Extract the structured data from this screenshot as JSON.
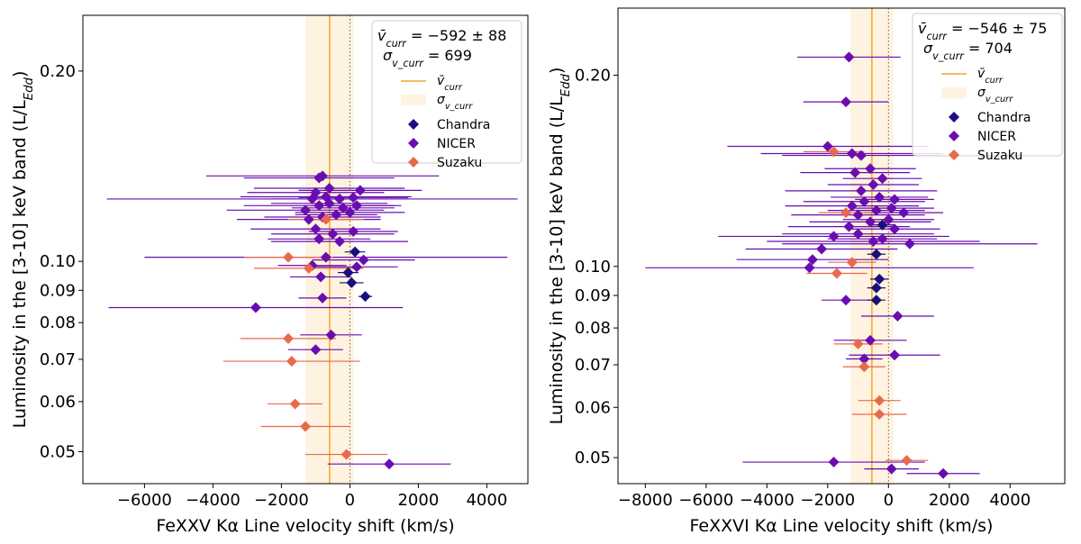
{
  "chart_data": [
    {
      "type": "scatter",
      "panel": "left",
      "xlabel": "FeXXV Kα Line velocity shift (km/s)",
      "ylabel": "Luminosity in the [3-10] keV band (L/L_Edd)",
      "xlim": [
        -7800,
        5200
      ],
      "ylim": [
        0.0445,
        0.245
      ],
      "yscale": "log",
      "xticks": [
        -6000,
        -4000,
        -2000,
        0,
        2000,
        4000
      ],
      "xtick_labels": [
        "−6000",
        "−4000",
        "−2000",
        "0",
        "2000",
        "4000"
      ],
      "yticks": [
        0.05,
        0.06,
        0.07,
        0.08,
        0.09,
        0.1,
        0.2
      ],
      "ytick_labels": [
        "0.05",
        "0.06",
        "0.07",
        "0.08",
        "0.09",
        "0.10",
        "0.20"
      ],
      "mean_velocity": -592,
      "sigma_velocity": 699,
      "stat_text_1": "v̄_curr = −592 ± 88",
      "stat_text_2": "σ_v_curr = 699",
      "legend": {
        "mean_label": "v̄_curr",
        "sigma_label": "σ_v_curr",
        "entries": [
          {
            "name": "Chandra",
            "color": "#1a0f7a"
          },
          {
            "name": "NICER",
            "color": "#6a0db0"
          },
          {
            "name": "Suzaku",
            "color": "#e86a4d"
          }
        ]
      },
      "series": [
        {
          "name": "Chandra",
          "color": "#1a0f7a",
          "points": [
            {
              "x": 150,
              "y": 0.1035,
              "xerr": 300
            },
            {
              "x": 50,
              "y": 0.0925,
              "xerr": 350
            },
            {
              "x": -50,
              "y": 0.096,
              "xerr": 300
            },
            {
              "x": 450,
              "y": 0.088,
              "xerr": 200
            }
          ]
        },
        {
          "name": "NICER",
          "color": "#6a0db0",
          "points": [
            {
              "x": 1150,
              "y": 0.0478,
              "xerr": 1800
            },
            {
              "x": -2750,
              "y": 0.0845,
              "xerr": 4300
            },
            {
              "x": -550,
              "y": 0.0765,
              "xerr": 900
            },
            {
              "x": -1000,
              "y": 0.0725,
              "xerr": 800
            },
            {
              "x": -800,
              "y": 0.0875,
              "xerr": 700
            },
            {
              "x": -850,
              "y": 0.0945,
              "xerr": 900
            },
            {
              "x": -1100,
              "y": 0.0985,
              "xerr": 1000
            },
            {
              "x": -700,
              "y": 0.1015,
              "xerr": 5300
            },
            {
              "x": 400,
              "y": 0.1005,
              "xerr": 1500
            },
            {
              "x": 200,
              "y": 0.098,
              "xerr": 1200
            },
            {
              "x": -300,
              "y": 0.1075,
              "xerr": 2000
            },
            {
              "x": -900,
              "y": 0.1085,
              "xerr": 1500
            },
            {
              "x": -500,
              "y": 0.1105,
              "xerr": 1800
            },
            {
              "x": 100,
              "y": 0.1115,
              "xerr": 1300
            },
            {
              "x": -1000,
              "y": 0.1125,
              "xerr": 1900
            },
            {
              "x": -1200,
              "y": 0.1165,
              "xerr": 2100
            },
            {
              "x": -800,
              "y": 0.1175,
              "xerr": 1700
            },
            {
              "x": -400,
              "y": 0.1185,
              "xerr": 1200
            },
            {
              "x": 0,
              "y": 0.1195,
              "xerr": 1600
            },
            {
              "x": -1300,
              "y": 0.1205,
              "xerr": 2300
            },
            {
              "x": -900,
              "y": 0.1225,
              "xerr": 2200
            },
            {
              "x": -600,
              "y": 0.1235,
              "xerr": 1700
            },
            {
              "x": -200,
              "y": 0.1215,
              "xerr": 1500
            },
            {
              "x": 200,
              "y": 0.1225,
              "xerr": 1300
            },
            {
              "x": -1100,
              "y": 0.1255,
              "xerr": 6000
            },
            {
              "x": -700,
              "y": 0.1265,
              "xerr": 2500
            },
            {
              "x": -300,
              "y": 0.1255,
              "xerr": 2000
            },
            {
              "x": 100,
              "y": 0.1262,
              "xerr": 1600
            },
            {
              "x": -1000,
              "y": 0.1285,
              "xerr": 2000
            },
            {
              "x": 300,
              "y": 0.1295,
              "xerr": 1800
            },
            {
              "x": -600,
              "y": 0.1305,
              "xerr": 2200
            },
            {
              "x": -900,
              "y": 0.1355,
              "xerr": 2200
            },
            {
              "x": -800,
              "y": 0.1365,
              "xerr": 3400
            }
          ]
        },
        {
          "name": "Suzaku",
          "color": "#e86a4d",
          "points": [
            {
              "x": -100,
              "y": 0.0495,
              "xerr": 1200
            },
            {
              "x": -1300,
              "y": 0.0548,
              "xerr": 1300
            },
            {
              "x": -1600,
              "y": 0.0595,
              "xerr": 800
            },
            {
              "x": -1700,
              "y": 0.0695,
              "xerr": 2000
            },
            {
              "x": -1800,
              "y": 0.0755,
              "xerr": 1400
            },
            {
              "x": -1200,
              "y": 0.0975,
              "xerr": 1600
            },
            {
              "x": -1800,
              "y": 0.1015,
              "xerr": 1300
            },
            {
              "x": -700,
              "y": 0.1165,
              "xerr": 1100
            }
          ]
        }
      ]
    },
    {
      "type": "scatter",
      "panel": "right",
      "xlabel": "FeXXVI Kα Line velocity shift (km/s)",
      "ylabel": "Luminosity in the [3-10] keV band (L/L_Edd)",
      "xlim": [
        -8900,
        5800
      ],
      "ylim": [
        0.0455,
        0.255
      ],
      "yscale": "log",
      "xticks": [
        -8000,
        -6000,
        -4000,
        -2000,
        0,
        2000,
        4000
      ],
      "xtick_labels": [
        "−8000",
        "−6000",
        "−4000",
        "−2000",
        "0",
        "2000",
        "4000"
      ],
      "yticks": [
        0.05,
        0.06,
        0.07,
        0.08,
        0.09,
        0.1,
        0.2
      ],
      "ytick_labels": [
        "0.05",
        "0.06",
        "0.07",
        "0.08",
        "0.09",
        "0.10",
        "0.20"
      ],
      "mean_velocity": -546,
      "sigma_velocity": 704,
      "stat_text_1": "v̄_curr = −546 ± 75",
      "stat_text_2": "σ_v_curr = 704",
      "legend": {
        "mean_label": "v̄_curr",
        "sigma_label": "σ_v_curr",
        "entries": [
          {
            "name": "Chandra",
            "color": "#1a0f7a"
          },
          {
            "name": "NICER",
            "color": "#6a0db0"
          },
          {
            "name": "Suzaku",
            "color": "#e86a4d"
          }
        ]
      },
      "series": [
        {
          "name": "Chandra",
          "color": "#1a0f7a",
          "points": [
            {
              "x": -400,
              "y": 0.0885,
              "xerr": 300
            },
            {
              "x": -400,
              "y": 0.0925,
              "xerr": 300
            },
            {
              "x": -300,
              "y": 0.0955,
              "xerr": 300
            },
            {
              "x": -400,
              "y": 0.1045,
              "xerr": 300
            },
            {
              "x": -200,
              "y": 0.1162,
              "xerr": 400
            }
          ]
        },
        {
          "name": "NICER",
          "color": "#6a0db0",
          "points": [
            {
              "x": -1800,
              "y": 0.0492,
              "xerr": 3000
            },
            {
              "x": 1800,
              "y": 0.0472,
              "xerr": 1200
            },
            {
              "x": 100,
              "y": 0.048,
              "xerr": 900
            },
            {
              "x": 300,
              "y": 0.0835,
              "xerr": 1200
            },
            {
              "x": -800,
              "y": 0.0715,
              "xerr": 600
            },
            {
              "x": 200,
              "y": 0.0725,
              "xerr": 1500
            },
            {
              "x": -600,
              "y": 0.0765,
              "xerr": 1200
            },
            {
              "x": -1400,
              "y": 0.0885,
              "xerr": 800
            },
            {
              "x": -2600,
              "y": 0.0995,
              "xerr": 5400
            },
            {
              "x": -2500,
              "y": 0.1025,
              "xerr": 2500
            },
            {
              "x": -2200,
              "y": 0.1065,
              "xerr": 2500
            },
            {
              "x": -500,
              "y": 0.1095,
              "xerr": 3500
            },
            {
              "x": 700,
              "y": 0.1085,
              "xerr": 4200
            },
            {
              "x": -1800,
              "y": 0.1115,
              "xerr": 3800
            },
            {
              "x": -1000,
              "y": 0.1125,
              "xerr": 2500
            },
            {
              "x": -200,
              "y": 0.1105,
              "xerr": 1800
            },
            {
              "x": 200,
              "y": 0.1145,
              "xerr": 1500
            },
            {
              "x": -1300,
              "y": 0.1155,
              "xerr": 2000
            },
            {
              "x": -600,
              "y": 0.1175,
              "xerr": 2000
            },
            {
              "x": 0,
              "y": 0.1185,
              "xerr": 1500
            },
            {
              "x": -1000,
              "y": 0.1205,
              "xerr": 2200
            },
            {
              "x": -400,
              "y": 0.1225,
              "xerr": 1600
            },
            {
              "x": 100,
              "y": 0.1235,
              "xerr": 1400
            },
            {
              "x": 500,
              "y": 0.1215,
              "xerr": 1300
            },
            {
              "x": -1200,
              "y": 0.1245,
              "xerr": 2200
            },
            {
              "x": -800,
              "y": 0.1265,
              "xerr": 2000
            },
            {
              "x": -300,
              "y": 0.1285,
              "xerr": 1600
            },
            {
              "x": 200,
              "y": 0.1275,
              "xerr": 1300
            },
            {
              "x": -900,
              "y": 0.1315,
              "xerr": 2500
            },
            {
              "x": -500,
              "y": 0.1345,
              "xerr": 1500
            },
            {
              "x": -200,
              "y": 0.1375,
              "xerr": 1300
            },
            {
              "x": -1100,
              "y": 0.1405,
              "xerr": 1800
            },
            {
              "x": -600,
              "y": 0.1425,
              "xerr": 1500
            },
            {
              "x": -900,
              "y": 0.1495,
              "xerr": 2600
            },
            {
              "x": -1200,
              "y": 0.1505,
              "xerr": 3000
            },
            {
              "x": -2000,
              "y": 0.1545,
              "xerr": 3300
            },
            {
              "x": -1400,
              "y": 0.1815,
              "xerr": 1400
            },
            {
              "x": -1300,
              "y": 0.2135,
              "xerr": 1700
            }
          ]
        },
        {
          "name": "Suzaku",
          "color": "#e86a4d",
          "points": [
            {
              "x": 600,
              "y": 0.0495,
              "xerr": 700
            },
            {
              "x": -300,
              "y": 0.0585,
              "xerr": 900
            },
            {
              "x": -300,
              "y": 0.0615,
              "xerr": 700
            },
            {
              "x": -800,
              "y": 0.0695,
              "xerr": 700
            },
            {
              "x": -1000,
              "y": 0.0755,
              "xerr": 800
            },
            {
              "x": -1700,
              "y": 0.0975,
              "xerr": 1000
            },
            {
              "x": -1200,
              "y": 0.1015,
              "xerr": 800
            },
            {
              "x": -1400,
              "y": 0.1215,
              "xerr": 900
            },
            {
              "x": -1800,
              "y": 0.1515,
              "xerr": 1000
            }
          ]
        }
      ]
    }
  ]
}
